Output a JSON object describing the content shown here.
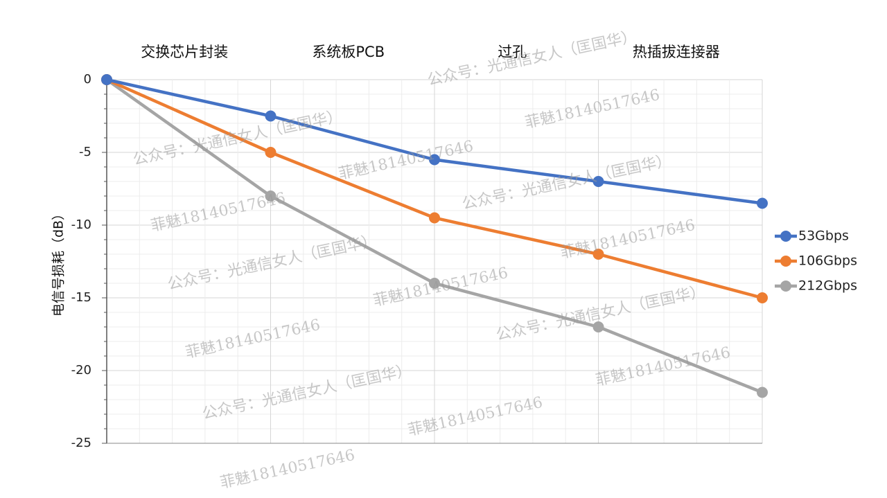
{
  "chart_data": {
    "type": "line",
    "categories": [
      "",
      "交换芯片封装",
      "系统板PCB",
      "过孔",
      "热插拔连接器"
    ],
    "stage_labels": [
      "交换芯片封装",
      "系统板PCB",
      "过孔",
      "热插拔连接器"
    ],
    "ylabel": "电信号损耗（dB）",
    "ylim": [
      -25,
      0
    ],
    "yticks": [
      0,
      -5,
      -10,
      -15,
      -20,
      -25
    ],
    "grid": true,
    "legend_position": "right",
    "series": [
      {
        "name": "53Gbps",
        "color": "#4472c4",
        "values": [
          0,
          -2.5,
          -5.5,
          -7,
          -8.5
        ]
      },
      {
        "name": "106Gbps",
        "color": "#ed7d31",
        "values": [
          0,
          -5,
          -9.5,
          -12,
          -15
        ]
      },
      {
        "name": "212Gbps",
        "color": "#a5a5a5",
        "values": [
          0,
          -8,
          -14,
          -17,
          -21.5
        ]
      }
    ]
  },
  "watermarks": {
    "account": "公众号：光通信女人（匡国华）",
    "phone": "菲魅18140517646"
  }
}
